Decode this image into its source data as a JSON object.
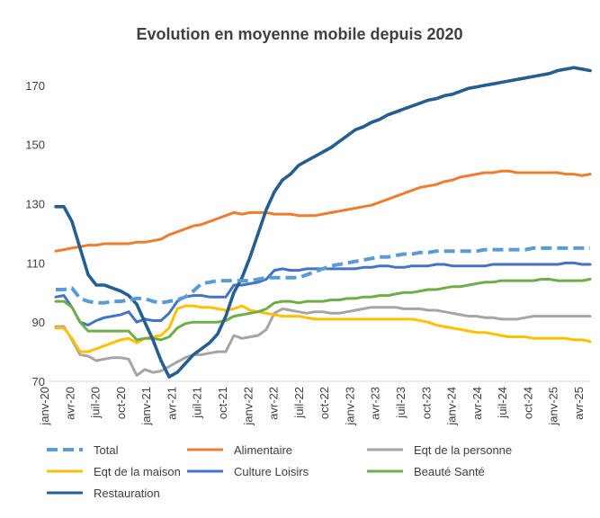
{
  "chart_data": {
    "type": "line",
    "title": "Evolution en moyenne mobile depuis 2020",
    "xlabel": "",
    "ylabel": "",
    "ylim": [
      70,
      180
    ],
    "yticks": [
      70,
      90,
      110,
      130,
      150,
      170
    ],
    "grid": false,
    "legend_position": "bottom",
    "x_tick_labels": [
      "janv-20",
      "avr-20",
      "juil-20",
      "oct-20",
      "janv-21",
      "avr-21",
      "juil-21",
      "oct-21",
      "janv-22",
      "avr-22",
      "juil-22",
      "oct-22",
      "janv-23",
      "avr-23",
      "juil-23",
      "oct-23",
      "janv-24",
      "avr-24",
      "juil-24",
      "oct-24",
      "janv-25",
      "avr-25"
    ],
    "series": [
      {
        "name": "Total",
        "color": "#5B9BD5",
        "dash": true,
        "values": [
          101,
          101,
          101.5,
          98,
          97,
          96.5,
          96.5,
          97,
          97,
          97.5,
          98,
          98,
          97,
          96.5,
          97,
          97.5,
          98.5,
          100.5,
          103,
          103.5,
          104,
          104,
          104,
          104,
          104,
          104.5,
          105,
          105,
          105,
          105,
          105,
          106,
          107,
          108,
          109,
          109.5,
          110,
          110.5,
          111,
          111.5,
          112,
          112,
          112.5,
          113,
          113,
          113.5,
          113.5,
          114,
          114,
          114,
          114,
          114,
          114,
          114.5,
          114.5,
          114.5,
          114.5,
          114.5,
          114.5,
          115,
          115,
          115,
          115,
          115,
          115,
          115,
          115
        ]
      },
      {
        "name": "Alimentaire",
        "color": "#ED7D31",
        "dash": false,
        "values": [
          114,
          114.5,
          115,
          115.5,
          116,
          116,
          116.5,
          116.5,
          116.5,
          116.5,
          117,
          117,
          117.5,
          118,
          119.5,
          120.5,
          121.5,
          122.5,
          123,
          124,
          125,
          126,
          127,
          126.5,
          127,
          127,
          127,
          126.5,
          126.5,
          126.5,
          126,
          126,
          126,
          126.5,
          127,
          127.5,
          128,
          128.5,
          129,
          129.5,
          130.5,
          131.5,
          132.5,
          133.5,
          134.5,
          135.5,
          136,
          136.5,
          137.5,
          138,
          139,
          139.5,
          140,
          140.5,
          140.5,
          141,
          141,
          140.5,
          140.5,
          140.5,
          140.5,
          140.5,
          140.5,
          140,
          140,
          139.5,
          140
        ]
      },
      {
        "name": "Eqt de la personne",
        "color": "#A5A5A5",
        "dash": false,
        "values": [
          88.5,
          88.5,
          84,
          79,
          78.5,
          77,
          77.5,
          78,
          78,
          77.5,
          72,
          74,
          73,
          73.5,
          75,
          76.5,
          78,
          79,
          79,
          79.5,
          80,
          80,
          85.5,
          84.5,
          85,
          85.5,
          87.5,
          93,
          94.5,
          94,
          93.5,
          93,
          93.5,
          93.5,
          93,
          93,
          93.5,
          94,
          94.5,
          95,
          95,
          95,
          95,
          94.5,
          94.5,
          94.5,
          94,
          94,
          93.5,
          93,
          92.5,
          92,
          92,
          91.5,
          91.5,
          91,
          91,
          91,
          91.5,
          92,
          92,
          92,
          92,
          92,
          92,
          92,
          92
        ]
      },
      {
        "name": "Eqt de la maison",
        "color": "#FFC000",
        "dash": false,
        "values": [
          88,
          88,
          84.5,
          80,
          80,
          81,
          82,
          83,
          84,
          84.5,
          83,
          84.5,
          85,
          85.5,
          88,
          94.5,
          95.5,
          95.5,
          95,
          95,
          94.5,
          94,
          94.5,
          95.5,
          94,
          93.5,
          93,
          92.5,
          92,
          92,
          92,
          91.5,
          91,
          91,
          91,
          91,
          91,
          91,
          91,
          91,
          91,
          91,
          91,
          91,
          91,
          90.5,
          90,
          89,
          88.5,
          88,
          87.5,
          87,
          86.5,
          86.5,
          86,
          85.5,
          85,
          85,
          85,
          84.5,
          84.5,
          84.5,
          84.5,
          84.5,
          84,
          84,
          83.5
        ]
      },
      {
        "name": "Culture Loisirs",
        "color": "#4472C4",
        "dash": false,
        "values": [
          98.5,
          99,
          95,
          90,
          89,
          90.5,
          91.5,
          92,
          92.5,
          93.5,
          90,
          91,
          90.5,
          90.5,
          93,
          97,
          98.5,
          99,
          99,
          98.5,
          98.5,
          98.5,
          102.5,
          102.5,
          103,
          103.5,
          104.5,
          107.5,
          108,
          107.5,
          107.5,
          108,
          108,
          108,
          108,
          108,
          108,
          108,
          108.5,
          108.5,
          109,
          109,
          108.5,
          108.5,
          109,
          109,
          109,
          109.5,
          109.5,
          109,
          109,
          109,
          109,
          109,
          109.5,
          109.5,
          109.5,
          109.5,
          109.5,
          109.5,
          109.5,
          109.5,
          109.5,
          110,
          110,
          109.5,
          109.5
        ]
      },
      {
        "name": "Beauté Santé",
        "color": "#70AD47",
        "dash": false,
        "values": [
          97,
          97,
          95,
          90,
          87,
          87,
          87,
          87,
          87,
          87,
          84,
          84.5,
          84.5,
          84,
          85,
          88,
          89.5,
          90,
          90,
          90,
          90,
          90.5,
          92,
          92.5,
          93,
          93.5,
          94.5,
          96.5,
          97,
          97,
          96.5,
          97,
          97,
          97,
          97.5,
          97.5,
          98,
          98,
          98.5,
          98.5,
          99,
          99,
          99.5,
          100,
          100,
          100.5,
          101,
          101,
          101.5,
          102,
          102,
          102.5,
          103,
          103.5,
          103.5,
          104,
          104,
          104,
          104,
          104,
          104.5,
          104.5,
          104,
          104,
          104,
          104,
          104.5
        ]
      },
      {
        "name": "Restauration",
        "color": "#255E91",
        "dash": false,
        "values": [
          129,
          129,
          124,
          115,
          106,
          102.5,
          102.5,
          101.5,
          100.5,
          99,
          96,
          90,
          84,
          77,
          71.5,
          73,
          76,
          79,
          81,
          83,
          86,
          92,
          100,
          105,
          112,
          120,
          128,
          134,
          138,
          140,
          143,
          144.5,
          146,
          147.5,
          149,
          151,
          153,
          155,
          156,
          157.5,
          158.5,
          160,
          161,
          162,
          163,
          164,
          165,
          165.5,
          166.5,
          167,
          168,
          169,
          169.5,
          170,
          170.5,
          171,
          171.5,
          172,
          172.5,
          173,
          173.5,
          174,
          175,
          175.5,
          176,
          175.5,
          175
        ]
      }
    ],
    "legend": [
      {
        "label": "Total",
        "series": 0
      },
      {
        "label": "Alimentaire",
        "series": 1
      },
      {
        "label": "Eqt de la personne",
        "series": 2
      },
      {
        "label": "Eqt de la maison",
        "series": 3
      },
      {
        "label": "Culture Loisirs",
        "series": 4
      },
      {
        "label": "Beauté Santé",
        "series": 5
      },
      {
        "label": "Restauration",
        "series": 6
      }
    ]
  }
}
